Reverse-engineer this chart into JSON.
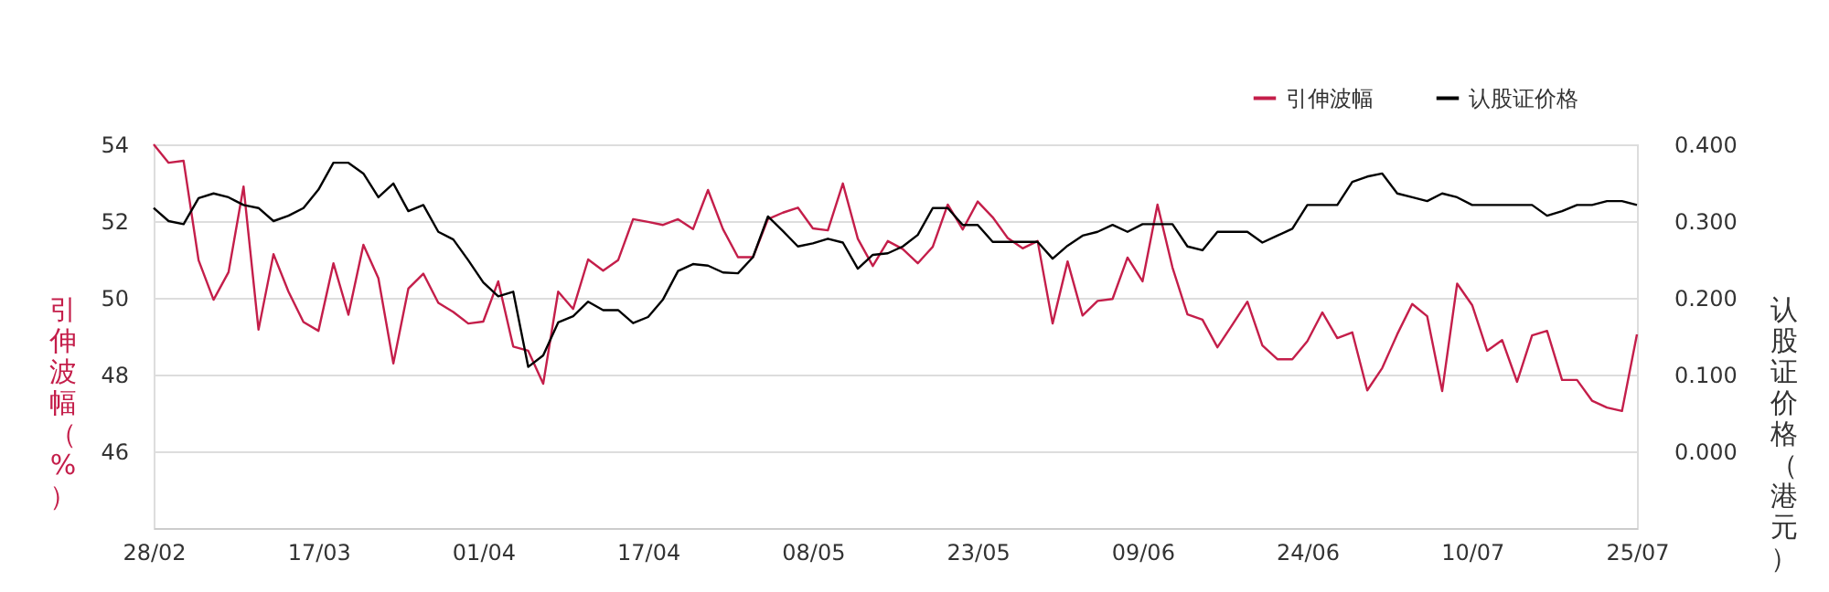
{
  "chart_data": {
    "type": "line",
    "categories": [
      "28/02",
      null,
      null,
      null,
      null,
      null,
      null,
      null,
      null,
      null,
      null,
      "17/03",
      null,
      null,
      null,
      null,
      null,
      null,
      null,
      null,
      null,
      null,
      "01/04",
      null,
      null,
      null,
      null,
      null,
      null,
      null,
      null,
      null,
      null,
      "17/04",
      null,
      null,
      null,
      null,
      null,
      null,
      null,
      null,
      null,
      null,
      "08/05",
      null,
      null,
      null,
      null,
      null,
      null,
      null,
      null,
      null,
      null,
      "23/05",
      null,
      null,
      null,
      null,
      null,
      null,
      null,
      null,
      null,
      null,
      "09/06",
      null,
      null,
      null,
      null,
      null,
      null,
      null,
      null,
      null,
      null,
      "24/06",
      null,
      null,
      null,
      null,
      null,
      null,
      null,
      null,
      null,
      null,
      "10/07",
      null,
      null,
      null,
      null,
      null,
      null,
      null,
      null,
      null,
      null,
      "25/07"
    ],
    "ylabel": "引伸波幅（%）",
    "y2label": "认股证价格（港元）",
    "ylim": [
      44,
      54
    ],
    "yticks": [
      46,
      48,
      50,
      52,
      54
    ],
    "y2lim": [
      -0.1,
      0.4
    ],
    "y2ticks": [
      {
        "value": 0,
        "label": "0.000"
      },
      {
        "value": 0.1,
        "label": "0.100"
      },
      {
        "value": 0.2,
        "label": "0.200"
      },
      {
        "value": 0.3,
        "label": "0.300"
      },
      {
        "value": 0.4,
        "label": "0.400"
      }
    ],
    "grid": "y",
    "legend": "top right",
    "marker": "none",
    "line_style": "solid",
    "series": [
      {
        "name": "引伸波幅",
        "color": "#c41e4a",
        "values": [
          54.0,
          53.52,
          53.57,
          50.98,
          49.95,
          50.67,
          52.9,
          49.17,
          51.14,
          50.16,
          49.37,
          49.14,
          50.9,
          49.56,
          51.38,
          50.51,
          48.29,
          50.24,
          50.63,
          49.87,
          49.63,
          49.33,
          49.38,
          50.43,
          48.73,
          48.62,
          47.76,
          50.16,
          49.71,
          51.0,
          50.71,
          50.98,
          52.05,
          51.98,
          51.9,
          52.05,
          51.79,
          52.81,
          51.79,
          51.06,
          51.06,
          52.05,
          52.22,
          52.35,
          51.81,
          51.76,
          52.98,
          51.54,
          50.83,
          51.48,
          51.27,
          50.9,
          51.33,
          52.43,
          51.78,
          52.51,
          52.1,
          51.56,
          51.29,
          51.48,
          49.33,
          50.95,
          49.54,
          49.92,
          49.97,
          51.05,
          50.43,
          52.43,
          50.79,
          49.57,
          49.43,
          48.71,
          49.3,
          49.9,
          48.76,
          48.4,
          48.4,
          48.87,
          49.62,
          48.95,
          49.1,
          47.59,
          48.17,
          49.05,
          49.84,
          49.52,
          47.57,
          50.37,
          49.81,
          48.62,
          48.9,
          47.81,
          49.02,
          49.14,
          47.86,
          47.86,
          47.32,
          47.14,
          47.05,
          49.05
        ]
      },
      {
        "name": "认股证价格",
        "color": "#000000",
        "axis": "y2",
        "values": [
          0.317,
          0.3,
          0.296,
          0.33,
          0.336,
          0.331,
          0.321,
          0.317,
          0.3,
          0.307,
          0.317,
          0.341,
          0.376,
          0.376,
          0.362,
          0.331,
          0.349,
          0.313,
          0.321,
          0.286,
          0.276,
          0.249,
          0.22,
          0.202,
          0.208,
          0.11,
          0.125,
          0.168,
          0.176,
          0.195,
          0.184,
          0.184,
          0.167,
          0.175,
          0.198,
          0.235,
          0.244,
          0.242,
          0.233,
          0.232,
          0.253,
          0.306,
          0.287,
          0.267,
          0.271,
          0.277,
          0.272,
          0.238,
          0.256,
          0.258,
          0.267,
          0.282,
          0.317,
          0.317,
          0.295,
          0.295,
          0.273,
          0.273,
          0.273,
          0.273,
          0.251,
          0.268,
          0.281,
          0.286,
          0.295,
          0.286,
          0.296,
          0.296,
          0.296,
          0.267,
          0.262,
          0.286,
          0.286,
          0.286,
          0.272,
          0.281,
          0.29,
          0.321,
          0.321,
          0.321,
          0.351,
          0.358,
          0.362,
          0.336,
          0.331,
          0.326,
          0.336,
          0.331,
          0.321,
          0.321,
          0.321,
          0.321,
          0.321,
          0.307,
          0.313,
          0.321,
          0.321,
          0.326,
          0.326,
          0.321
        ]
      }
    ]
  }
}
